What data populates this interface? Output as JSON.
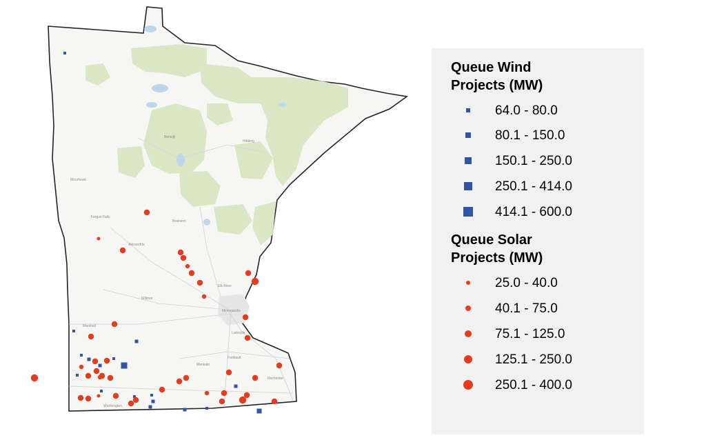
{
  "map": {
    "region": "Minnesota",
    "place_labels": [
      "Brainerd",
      "Hibbing",
      "Elk River",
      "Minneapolis",
      "Lakeville",
      "Alexandria",
      "Fergus Falls",
      "Marshall",
      "Mankato",
      "Faribault",
      "Rochester",
      "Worthington",
      "Willmar",
      "Bemidji",
      "Moorhead"
    ],
    "colors": {
      "wind": "#2f55a4",
      "solar": "#e63b1d",
      "forest": "#d9e8c4",
      "water": "#bcd7ec"
    }
  },
  "legend": {
    "wind_title_line1": "Queue Wind",
    "wind_title_line2": "Projects (MW)",
    "wind_classes": [
      "64.0 - 80.0",
      "80.1 - 150.0",
      "150.1 - 250.0",
      "250.1 - 414.0",
      "414.1 - 600.0"
    ],
    "solar_title_line1": "Queue Solar",
    "solar_title_line2": "Projects (MW)",
    "solar_classes": [
      "25.0 - 40.0",
      "40.1 - 75.0",
      "75.1 - 125.0",
      "125.1 - 250.0",
      "250.1 - 400.0"
    ]
  },
  "wind_projects": [
    {
      "name": "wind-1",
      "size_class": 1
    },
    {
      "name": "wind-2",
      "size_class": 1
    },
    {
      "name": "wind-3",
      "size_class": 1
    },
    {
      "name": "wind-4",
      "size_class": 1
    },
    {
      "name": "wind-5",
      "size_class": 2
    },
    {
      "name": "wind-6",
      "size_class": 2
    },
    {
      "name": "wind-7",
      "size_class": 1
    },
    {
      "name": "wind-8",
      "size_class": 1
    },
    {
      "name": "wind-9",
      "size_class": 4
    },
    {
      "name": "wind-10",
      "size_class": 2
    },
    {
      "name": "wind-11",
      "size_class": 1
    },
    {
      "name": "wind-12",
      "size_class": 2
    },
    {
      "name": "wind-13",
      "size_class": 1
    },
    {
      "name": "wind-14",
      "size_class": 2
    },
    {
      "name": "wind-15",
      "size_class": 2
    },
    {
      "name": "wind-16",
      "size_class": 1
    },
    {
      "name": "wind-17",
      "size_class": 1
    },
    {
      "name": "wind-18",
      "size_class": 2
    },
    {
      "name": "wind-19",
      "size_class": 3
    }
  ],
  "solar_projects": [
    {
      "name": "solar-1",
      "size_class": 3
    },
    {
      "name": "solar-2",
      "size_class": 1
    },
    {
      "name": "solar-3",
      "size_class": 3
    },
    {
      "name": "solar-4",
      "size_class": 3
    },
    {
      "name": "solar-5",
      "size_class": 3
    },
    {
      "name": "solar-6",
      "size_class": 2
    },
    {
      "name": "solar-7",
      "size_class": 3
    },
    {
      "name": "solar-8",
      "size_class": 3
    },
    {
      "name": "solar-9",
      "size_class": 2
    },
    {
      "name": "solar-10",
      "size_class": 3
    },
    {
      "name": "solar-11",
      "size_class": 4
    },
    {
      "name": "solar-12",
      "size_class": 3
    },
    {
      "name": "solar-13",
      "size_class": 3
    },
    {
      "name": "solar-14",
      "size_class": 3
    },
    {
      "name": "solar-15",
      "size_class": 3
    },
    {
      "name": "solar-16",
      "size_class": 3
    },
    {
      "name": "solar-17",
      "size_class": 3
    },
    {
      "name": "solar-18",
      "size_class": 3
    },
    {
      "name": "solar-19",
      "size_class": 3
    },
    {
      "name": "solar-20",
      "size_class": 3
    },
    {
      "name": "solar-21",
      "size_class": 2
    },
    {
      "name": "solar-22",
      "size_class": 2
    },
    {
      "name": "solar-23",
      "size_class": 3
    },
    {
      "name": "solar-24",
      "size_class": 4
    },
    {
      "name": "solar-25",
      "size_class": 3
    },
    {
      "name": "solar-26",
      "size_class": 3
    },
    {
      "name": "solar-27",
      "size_class": 1
    },
    {
      "name": "solar-28",
      "size_class": 3
    },
    {
      "name": "solar-29",
      "size_class": 3
    },
    {
      "name": "solar-30",
      "size_class": 3
    },
    {
      "name": "solar-31",
      "size_class": 3
    },
    {
      "name": "solar-32",
      "size_class": 3
    },
    {
      "name": "solar-33",
      "size_class": 3
    },
    {
      "name": "solar-34",
      "size_class": 3
    },
    {
      "name": "solar-35",
      "size_class": 4
    },
    {
      "name": "solar-36",
      "size_class": 3
    },
    {
      "name": "solar-37",
      "size_class": 2
    },
    {
      "name": "solar-38",
      "size_class": 3
    },
    {
      "name": "solar-39",
      "size_class": 3
    },
    {
      "name": "solar-40",
      "size_class": 3
    },
    {
      "name": "solar-41",
      "size_class": 3
    },
    {
      "name": "solar-42",
      "size_class": 3
    }
  ]
}
